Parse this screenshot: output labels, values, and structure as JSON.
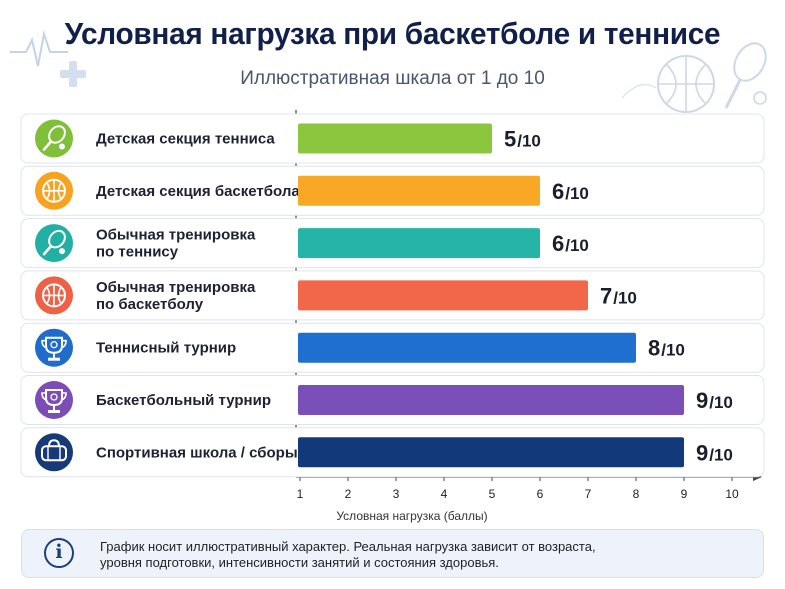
{
  "header": {
    "title": "Условная нагрузка при баскетболе и теннисе",
    "subtitle": "Иллюстративная шкала от 1 до 10"
  },
  "chart_data": {
    "type": "bar",
    "orientation": "horizontal",
    "title": "Условная нагрузка при баскетболе и теннисе",
    "subtitle": "Иллюстративная шкала от 1 до 10",
    "xlabel": "Условная нагрузка (баллы)",
    "ylabel": "",
    "xlim": [
      1,
      10
    ],
    "x_ticks": [
      1,
      2,
      3,
      4,
      5,
      6,
      7,
      8,
      9,
      10
    ],
    "grid": false,
    "value_suffix": "/10",
    "categories": [
      {
        "label": [
          "Детская секция тенниса"
        ],
        "value": 5,
        "color": "#8cc63f",
        "icon": "tennis-racket-icon",
        "icon_color": "#7fbf3a"
      },
      {
        "label": [
          "Детская секция баскетбола"
        ],
        "value": 6,
        "color": "#f9a825",
        "icon": "basketball-icon",
        "icon_color": "#f7a31f"
      },
      {
        "label": [
          "Обычная тренировка",
          "по теннису"
        ],
        "value": 6,
        "color": "#26b3a8",
        "icon": "tennis-racket-icon",
        "icon_color": "#22b0a4"
      },
      {
        "label": [
          "Обычная тренировка",
          "по баскетболу"
        ],
        "value": 7,
        "color": "#f2664a",
        "icon": "basketball-icon",
        "icon_color": "#ef6146"
      },
      {
        "label": [
          "Теннисный турнир"
        ],
        "value": 8,
        "color": "#1e6fd0",
        "icon": "tennis-trophy-icon",
        "icon_color": "#1f6ccb"
      },
      {
        "label": [
          "Баскетбольный турнир"
        ],
        "value": 9,
        "color": "#7a4fb8",
        "icon": "basketball-trophy-icon",
        "icon_color": "#7b4db5"
      },
      {
        "label": [
          "Спортивная школа / сборы"
        ],
        "value": 9,
        "color": "#123a7a",
        "icon": "sports-bag-icon",
        "icon_color": "#163a78"
      }
    ]
  },
  "note": {
    "icon": "info-icon",
    "text_line1": "График носит иллюстративный  характер.  Реальная нагрузка зависит от возраста,",
    "text_line2": "уровня подготовки, интенсивности занятий и состояния здоровья."
  }
}
